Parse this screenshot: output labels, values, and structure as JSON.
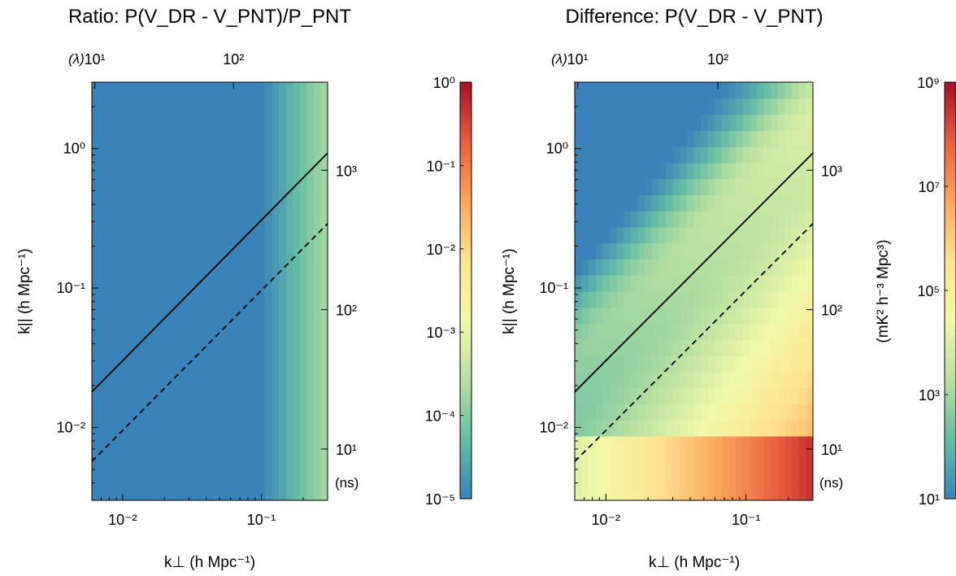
{
  "chart_data": [
    {
      "type": "heatmap",
      "title": "Ratio: P(V_DR - V_PNT)/P_PNT",
      "xlabel": "k⊥ (h Mpc⁻¹)",
      "ylabel": "k|| (h Mpc⁻¹)",
      "x_scale": "log",
      "y_scale": "log",
      "xlim": [
        0.006,
        0.3
      ],
      "ylim": [
        0.003,
        3.0
      ],
      "x_ticks": [
        {
          "value": 0.01,
          "label": "10⁻²"
        },
        {
          "value": 0.1,
          "label": "10⁻¹"
        }
      ],
      "y_ticks": [
        {
          "value": 0.01,
          "label": "10⁻²"
        },
        {
          "value": 0.1,
          "label": "10⁻¹"
        },
        {
          "value": 1,
          "label": "10⁰"
        }
      ],
      "top_axis_label": "(λ)",
      "top_ticks": [
        {
          "k": 0.0063,
          "label": "10¹"
        },
        {
          "k": 0.063,
          "label": "10²"
        }
      ],
      "right_axis_label": "(ns)",
      "right_ticks": [
        {
          "k": 0.007,
          "label": "10¹"
        },
        {
          "k": 0.07,
          "label": "10²"
        },
        {
          "k": 0.7,
          "label": "10³"
        }
      ],
      "lines": [
        {
          "style": "solid",
          "x": [
            0.006,
            0.3
          ],
          "y": [
            0.018,
            0.93
          ]
        },
        {
          "style": "dashed",
          "x": [
            0.006,
            0.3
          ],
          "y": [
            0.0057,
            0.29
          ]
        }
      ],
      "colorbar": {
        "scale": "log",
        "range": [
          1e-05,
          1
        ],
        "ticks": [
          {
            "value": 1,
            "label": "10⁰"
          },
          {
            "value": 0.1,
            "label": "10⁻¹"
          },
          {
            "value": 0.01,
            "label": "10⁻²"
          },
          {
            "value": 0.001,
            "label": "10⁻³"
          },
          {
            "value": 0.0001,
            "label": "10⁻⁴"
          },
          {
            "value": 1e-05,
            "label": "10⁻⁵"
          }
        ],
        "label": ""
      },
      "z_model": {
        "depends_on": "k_perp",
        "description": "value at colorbar minimum for k⊥ < 0.1, rising to ~2e-4 at k⊥ = 0.3",
        "floor_below_k": 0.1,
        "max_value": 0.0002
      }
    },
    {
      "type": "heatmap",
      "title": "Difference: P(V_DR - V_PNT)",
      "xlabel": "k⊥ (h Mpc⁻¹)",
      "ylabel": "k|| (h Mpc⁻¹)",
      "x_scale": "log",
      "y_scale": "log",
      "xlim": [
        0.006,
        0.3
      ],
      "ylim": [
        0.003,
        3.0
      ],
      "x_ticks": [
        {
          "value": 0.01,
          "label": "10⁻²"
        },
        {
          "value": 0.1,
          "label": "10⁻¹"
        }
      ],
      "y_ticks": [
        {
          "value": 0.01,
          "label": "10⁻²"
        },
        {
          "value": 0.1,
          "label": "10⁻¹"
        },
        {
          "value": 1,
          "label": "10⁰"
        }
      ],
      "top_axis_label": "(λ)",
      "top_ticks": [
        {
          "k": 0.0063,
          "label": "10¹"
        },
        {
          "k": 0.063,
          "label": "10²"
        }
      ],
      "right_axis_label": "(ns)",
      "right_ticks": [
        {
          "k": 0.007,
          "label": "10¹"
        },
        {
          "k": 0.07,
          "label": "10²"
        },
        {
          "k": 0.7,
          "label": "10³"
        }
      ],
      "lines": [
        {
          "style": "solid",
          "x": [
            0.006,
            0.3
          ],
          "y": [
            0.018,
            0.93
          ]
        },
        {
          "style": "dashed",
          "x": [
            0.006,
            0.3
          ],
          "y": [
            0.0057,
            0.29
          ]
        }
      ],
      "colorbar": {
        "scale": "log",
        "range": [
          10,
          1000000000
        ],
        "ticks": [
          {
            "value": 1000000000,
            "label": "10⁹"
          },
          {
            "value": 10000000,
            "label": "10⁷"
          },
          {
            "value": 100000,
            "label": "10⁵"
          },
          {
            "value": 1000,
            "label": "10³"
          },
          {
            "value": 10,
            "label": "10¹"
          }
        ],
        "label": "(mK² h⁻³ Mpc³)"
      },
      "z_model": {
        "depends_on": "k_perp and k_parallel",
        "description": "low (≈10¹) at small k⊥ / high k||, high (≈10⁸–10⁹) at large k⊥ and low k||; bright band along k|| ∝ k⊥; floor for k|| below 0.009"
      }
    }
  ],
  "colormap": [
    "#3a83b8",
    "#65bda5",
    "#b8e0a1",
    "#f1f9a9",
    "#fee391",
    "#fba75c",
    "#e95d3f",
    "#a50f26"
  ],
  "axis_color": "#000000"
}
